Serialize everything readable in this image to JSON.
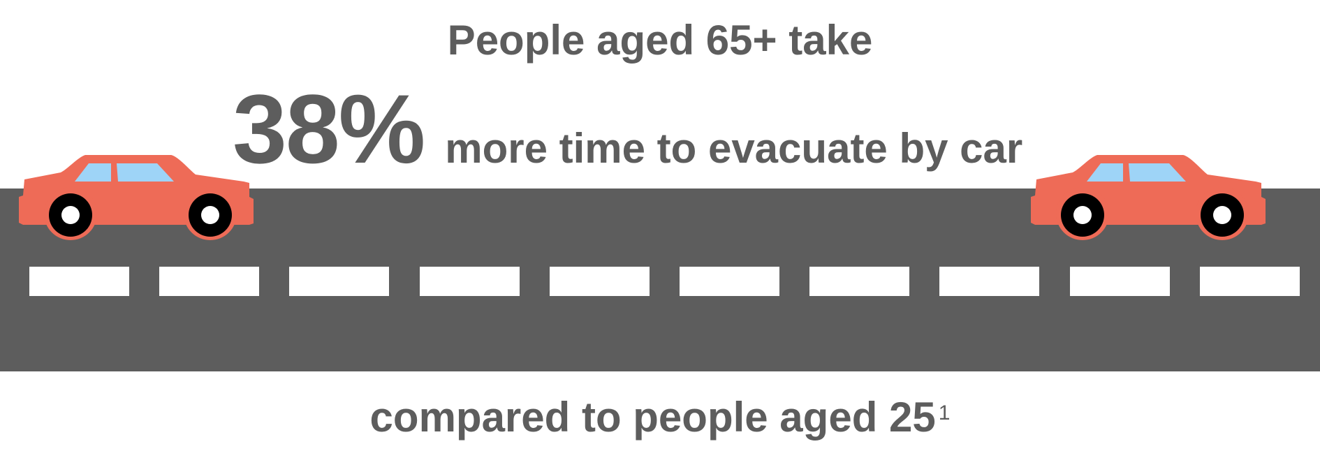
{
  "headline": {
    "top": "People aged 65+ take",
    "stat_number": "38%",
    "stat_suffix": "more time to evacuate by car",
    "bottom": "compared to people aged 25",
    "footnote_marker": "1"
  },
  "colors": {
    "text": "#5d5d5d",
    "road": "#5d5d5d",
    "lane_marking": "#ffffff",
    "car_body": "#ee6b57",
    "car_window": "#9ed4f7",
    "tire": "#000000",
    "hubcap": "#ffffff"
  },
  "icons": {
    "left_car": "car-icon",
    "right_car": "car-icon"
  }
}
